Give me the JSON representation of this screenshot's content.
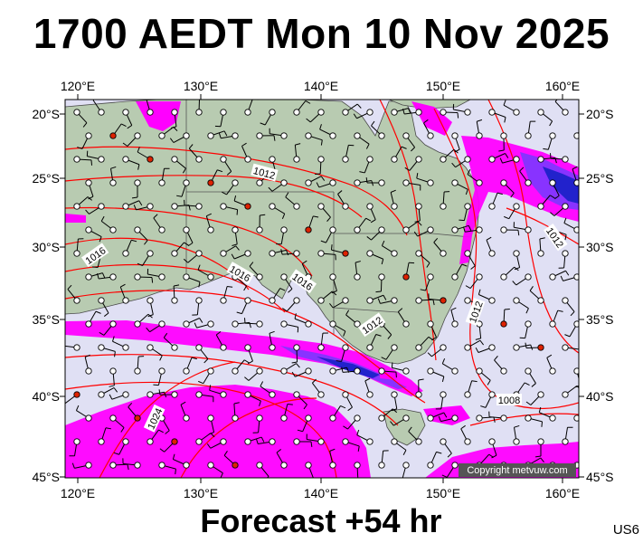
{
  "header": {
    "title": "1700 AEDT Mon 10 Nov 2025"
  },
  "footer": {
    "forecast": "Forecast +54 hr",
    "code": "US6"
  },
  "map": {
    "copyright": "Copyright metvuw.com",
    "lon_labels": [
      "120°E",
      "130°E",
      "140°E",
      "150°E",
      "160°E"
    ],
    "lat_labels": [
      "20°S",
      "25°S",
      "30°S",
      "35°S",
      "40°S",
      "45°S"
    ],
    "isobar_labels": [
      "1012",
      "1016",
      "1016",
      "1016",
      "1012",
      "1012",
      "1012",
      "1012",
      "1008",
      "1024"
    ],
    "colors": {
      "ocean": "#e0e0f4",
      "land": "#b8cbb1",
      "isobar": "#ff0000",
      "precip_light": "#ff00ff",
      "precip_medium": "#8833ff",
      "precip_heavy": "#2222cc"
    }
  }
}
